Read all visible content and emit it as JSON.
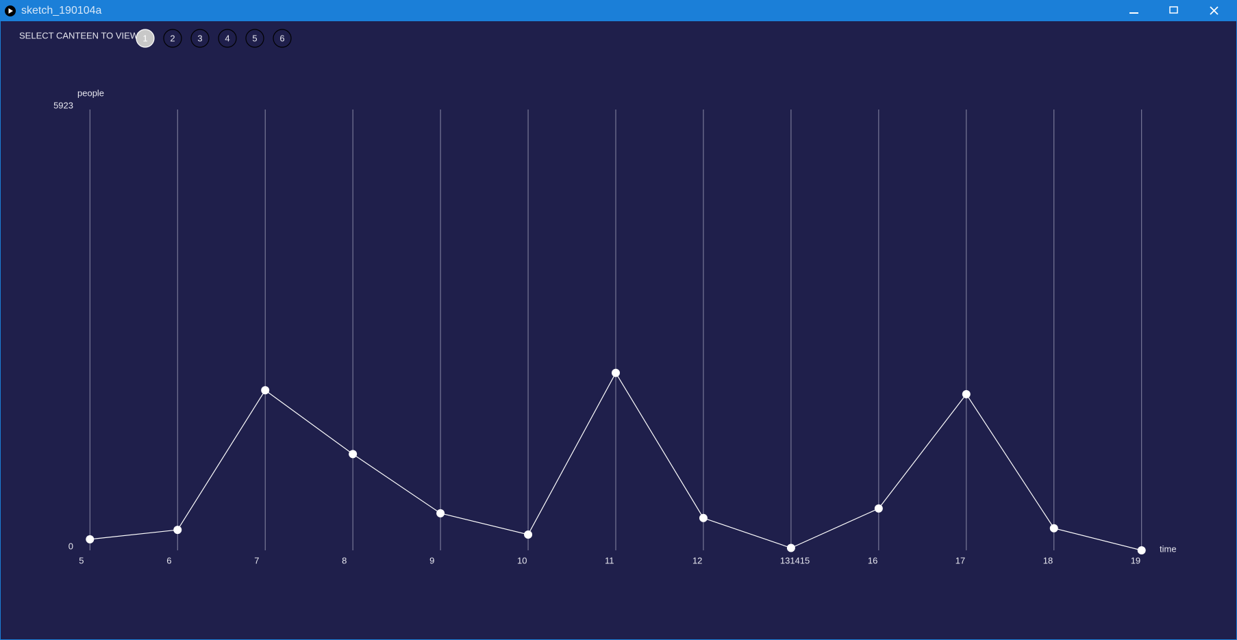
{
  "window": {
    "title": "sketch_190104a"
  },
  "controls": {
    "label": "SELECT CANTEEN TO VIEW:",
    "buttons": [
      "1",
      "2",
      "3",
      "4",
      "5",
      "6"
    ],
    "selected": "1"
  },
  "chart_data": {
    "type": "line",
    "y_label": "people",
    "x_label": "time",
    "categories": [
      "5",
      "6",
      "7",
      "8",
      "9",
      "10",
      "11",
      "12",
      "131415",
      "16",
      "17",
      "18",
      "19"
    ],
    "values": [
      148,
      275,
      2151,
      1293,
      498,
      212,
      2384,
      434,
      32,
      562,
      2098,
      297,
      0
    ],
    "color": "#ffffff",
    "ylim": [
      0,
      5923
    ],
    "yticks": [
      0,
      5923
    ],
    "grid": "x"
  }
}
